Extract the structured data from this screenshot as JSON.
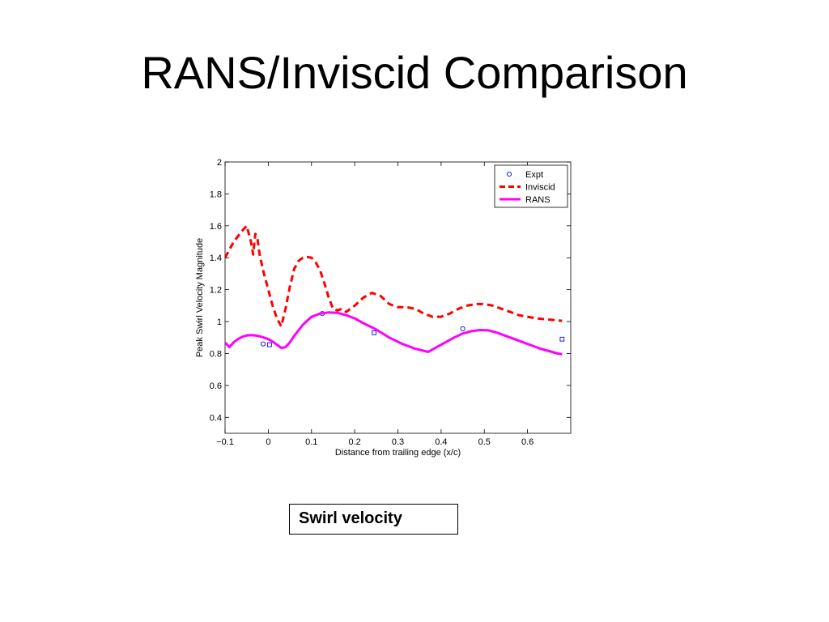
{
  "slide": {
    "title": "RANS/Inviscid Comparison",
    "caption": "Swirl velocity"
  },
  "chart_data": {
    "type": "line",
    "xlabel": "Distance from trailing edge (x/c)",
    "ylabel": "Peak Swirl Velocity Magnitude",
    "xlim": [
      -0.1,
      0.7
    ],
    "ylim": [
      0.3,
      2.0
    ],
    "xticks": [
      -0.1,
      0,
      0.1,
      0.2,
      0.3,
      0.4,
      0.5,
      0.6
    ],
    "xtick_labels": [
      "−0.1",
      "0",
      "0.1",
      "0.2",
      "0.3",
      "0.4",
      "0.5",
      "0.6"
    ],
    "yticks": [
      0.4,
      0.6,
      0.8,
      1.0,
      1.2,
      1.4,
      1.6,
      1.8,
      2.0
    ],
    "ytick_labels": [
      "0.4",
      "0.6",
      "0.8",
      "1",
      "1.2",
      "1.4",
      "1.6",
      "1.8",
      "2"
    ],
    "grid": false,
    "legend_position": "top-right",
    "series": [
      {
        "name": "Expt",
        "style": "markers",
        "color": "#0000ff",
        "x": [
          -0.012,
          0.003,
          0.125,
          0.245,
          0.45,
          0.68
        ],
        "y": [
          0.86,
          0.855,
          1.05,
          0.93,
          0.955,
          0.89
        ]
      },
      {
        "name": "Inviscid",
        "style": "dashed",
        "color": "#ff0000",
        "x": [
          -0.1,
          -0.08,
          -0.06,
          -0.05,
          -0.04,
          -0.035,
          -0.03,
          -0.025,
          -0.02,
          -0.01,
          0,
          0.01,
          0.02,
          0.03,
          0.04,
          0.05,
          0.06,
          0.07,
          0.08,
          0.09,
          0.1,
          0.11,
          0.12,
          0.13,
          0.14,
          0.15,
          0.16,
          0.17,
          0.18,
          0.2,
          0.22,
          0.24,
          0.26,
          0.28,
          0.3,
          0.32,
          0.34,
          0.36,
          0.38,
          0.4,
          0.42,
          0.44,
          0.46,
          0.48,
          0.5,
          0.52,
          0.54,
          0.56,
          0.58,
          0.6,
          0.62,
          0.64,
          0.66,
          0.68
        ],
        "y": [
          1.4,
          1.5,
          1.57,
          1.6,
          1.5,
          1.42,
          1.55,
          1.52,
          1.42,
          1.3,
          1.2,
          1.1,
          1.02,
          0.97,
          1.08,
          1.22,
          1.33,
          1.38,
          1.4,
          1.405,
          1.4,
          1.37,
          1.32,
          1.24,
          1.15,
          1.08,
          1.07,
          1.08,
          1.06,
          1.1,
          1.15,
          1.18,
          1.16,
          1.11,
          1.09,
          1.09,
          1.08,
          1.05,
          1.03,
          1.03,
          1.05,
          1.08,
          1.1,
          1.11,
          1.11,
          1.1,
          1.08,
          1.06,
          1.04,
          1.03,
          1.02,
          1.015,
          1.01,
          1.005
        ]
      },
      {
        "name": "RANS",
        "style": "solid",
        "color": "#ff00ff",
        "x": [
          -0.1,
          -0.09,
          -0.08,
          -0.07,
          -0.06,
          -0.05,
          -0.04,
          -0.03,
          -0.02,
          -0.01,
          0,
          0.01,
          0.02,
          0.03,
          0.04,
          0.05,
          0.06,
          0.08,
          0.1,
          0.12,
          0.14,
          0.16,
          0.18,
          0.2,
          0.22,
          0.25,
          0.28,
          0.31,
          0.34,
          0.37,
          0.39,
          0.41,
          0.43,
          0.45,
          0.47,
          0.49,
          0.51,
          0.53,
          0.55,
          0.57,
          0.59,
          0.61,
          0.63,
          0.65,
          0.67,
          0.68
        ],
        "y": [
          0.87,
          0.84,
          0.87,
          0.89,
          0.905,
          0.913,
          0.915,
          0.913,
          0.908,
          0.9,
          0.89,
          0.875,
          0.855,
          0.835,
          0.84,
          0.87,
          0.91,
          0.98,
          1.03,
          1.05,
          1.057,
          1.055,
          1.04,
          1.02,
          0.99,
          0.95,
          0.9,
          0.86,
          0.83,
          0.81,
          0.84,
          0.87,
          0.9,
          0.925,
          0.94,
          0.947,
          0.945,
          0.93,
          0.91,
          0.89,
          0.87,
          0.85,
          0.83,
          0.815,
          0.8,
          0.795
        ]
      }
    ]
  }
}
